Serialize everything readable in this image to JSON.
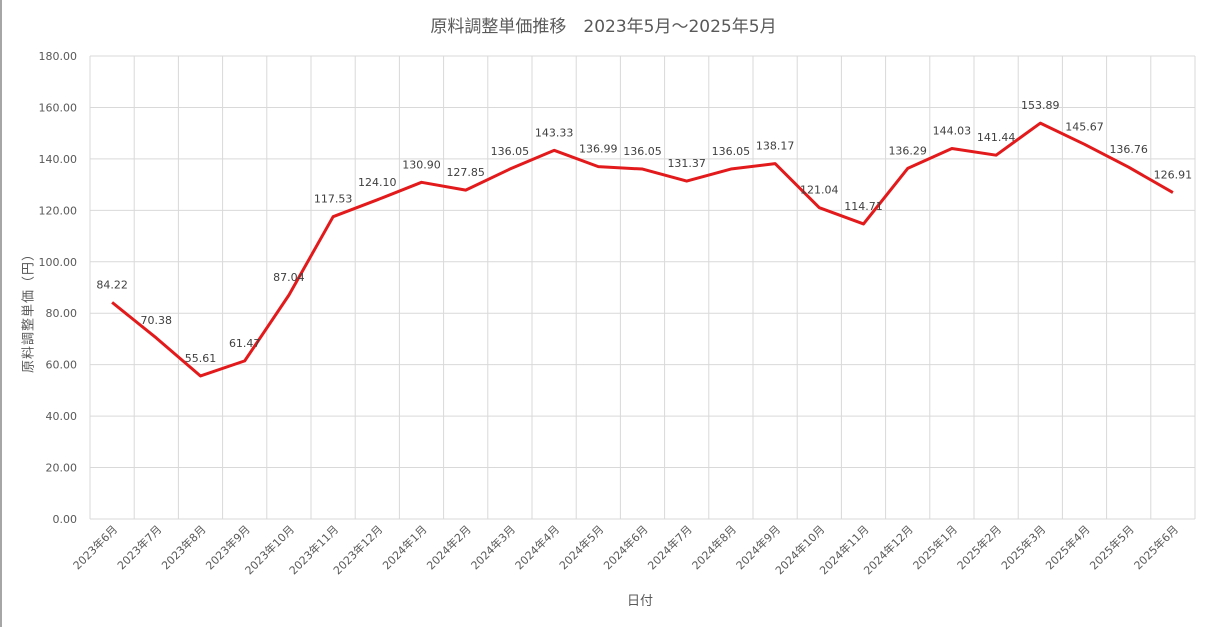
{
  "chart_data": {
    "type": "line",
    "title": "原料調整単価推移　2023年5月～2025年5月",
    "xlabel": "日付",
    "ylabel": "原料調整単価（円）",
    "ylim": [
      0,
      180
    ],
    "yticks": [
      "0.00",
      "20.00",
      "40.00",
      "60.00",
      "80.00",
      "100.00",
      "120.00",
      "140.00",
      "160.00",
      "180.00"
    ],
    "grid": true,
    "line_color": "#e31a1c",
    "categories": [
      "2023年6月",
      "2023年7月",
      "2023年8月",
      "2023年9月",
      "2023年10月",
      "2023年11月",
      "2023年12月",
      "2024年1月",
      "2024年2月",
      "2024年3月",
      "2024年4月",
      "2024年5月",
      "2024年6月",
      "2024年7月",
      "2024年8月",
      "2024年9月",
      "2024年10月",
      "2024年11月",
      "2024年12月",
      "2025年1月",
      "2025年2月",
      "2025年3月",
      "2025年4月",
      "2025年5月",
      "2025年6月"
    ],
    "values": [
      84.22,
      70.38,
      55.61,
      61.47,
      87.04,
      117.53,
      124.1,
      130.9,
      127.85,
      136.05,
      143.33,
      136.99,
      136.05,
      131.37,
      136.05,
      138.17,
      121.04,
      114.71,
      136.29,
      144.03,
      141.44,
      153.89,
      145.67,
      136.76,
      126.91
    ],
    "data_labels": [
      "84.22",
      "70.38",
      "55.61",
      "61.47",
      "87.04",
      "117.53",
      "124.10",
      "130.90",
      "127.85",
      "136.05",
      "143.33",
      "136.99",
      "136.05",
      "131.37",
      "136.05",
      "138.17",
      "121.04",
      "114.71",
      "136.29",
      "144.03",
      "141.44",
      "153.89",
      "145.67",
      "136.76",
      "126.91"
    ]
  }
}
